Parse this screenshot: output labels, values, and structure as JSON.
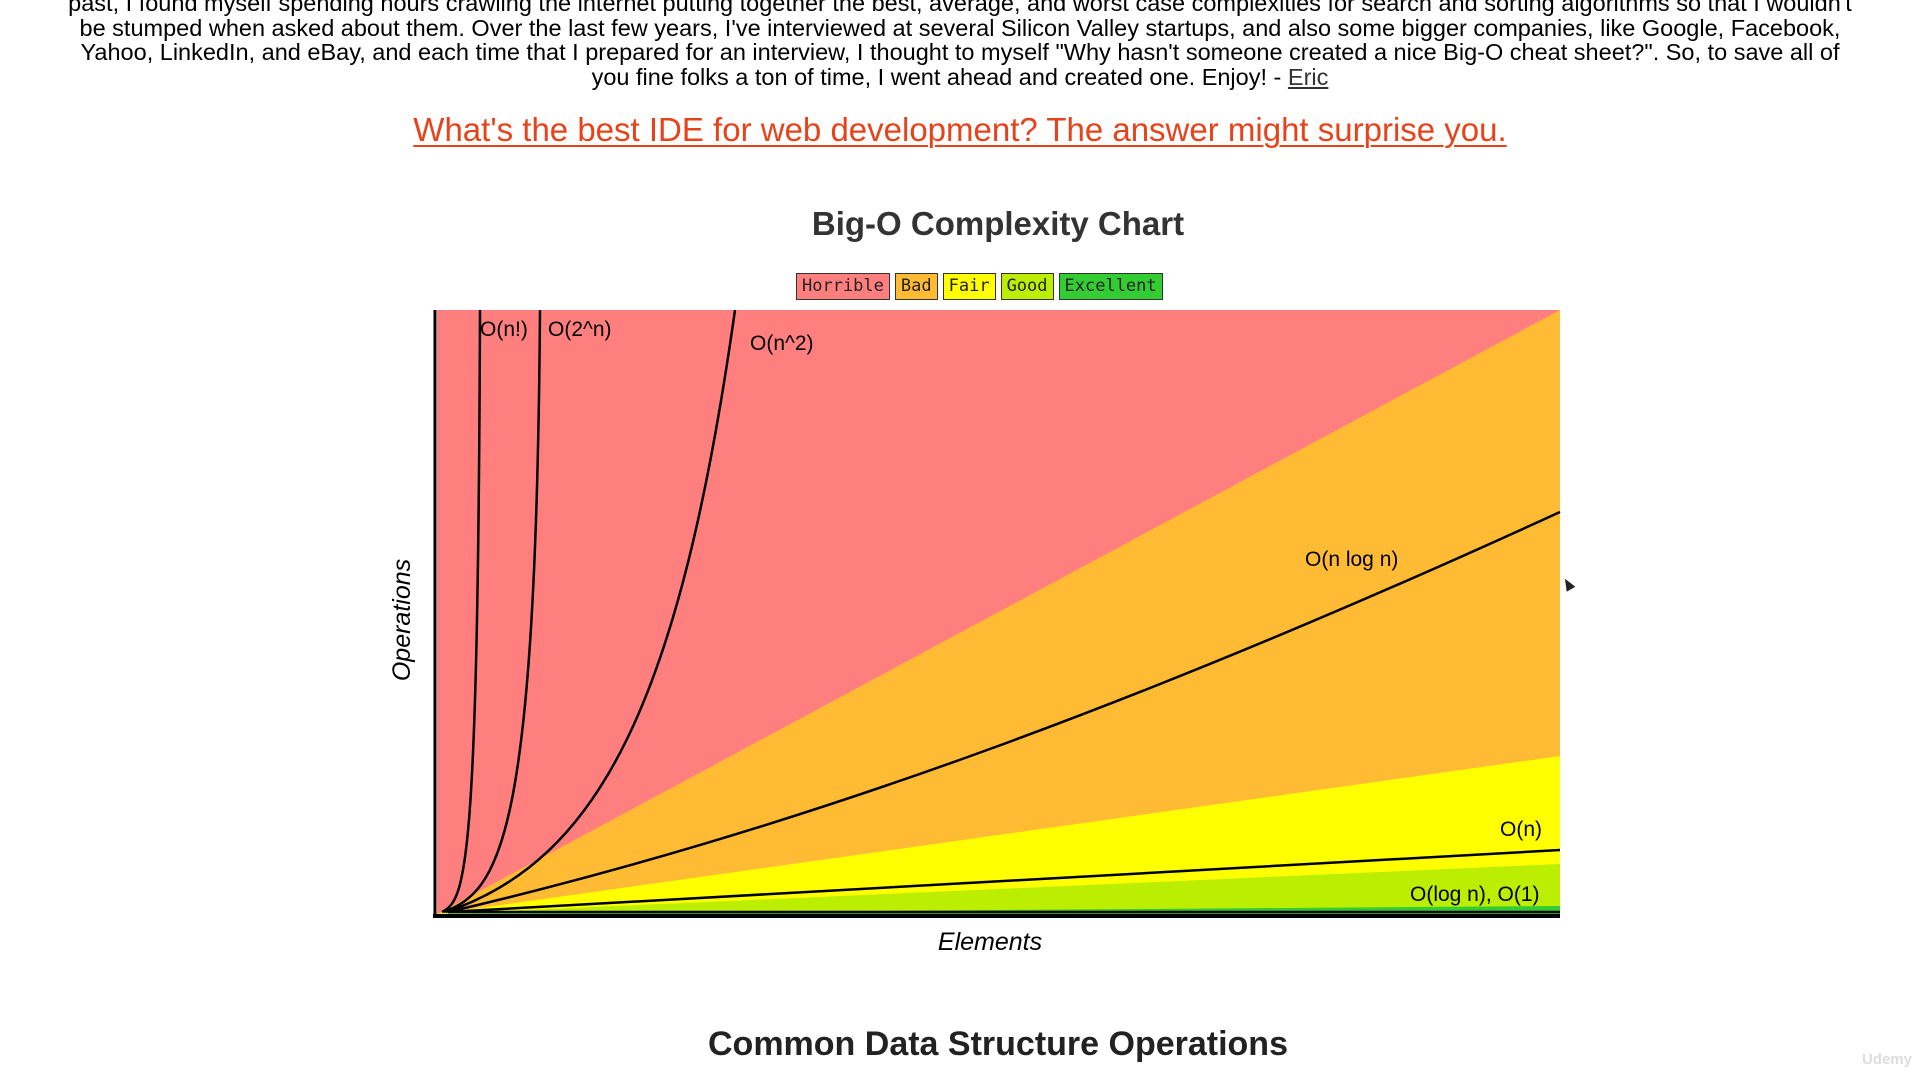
{
  "intro": {
    "line1": "past, I found myself spending hours crawling the internet putting together the best, average, and worst case complexities for search and sorting algorithms so that I wouldn't",
    "line2": "be stumped when asked about them.  Over the last few years, I've interviewed at several Silicon Valley startups, and also some bigger companies, like Google, Facebook,",
    "line3": "Yahoo, LinkedIn, and eBay, and each time that I prepared for an interview, I thought to myself \"Why hasn't someone created a nice Big-O cheat sheet?\".  So, to save all of",
    "line4": "you fine folks a ton of time, I went ahead and created one.  Enjoy! - ",
    "author_link": "Eric"
  },
  "promo_link": "What's the best IDE for web development? The answer might surprise you.",
  "chart_data": {
    "type": "area",
    "title": "Big-O Complexity Chart",
    "xlabel": "Elements",
    "ylabel": "Operations",
    "legend": [
      {
        "label": "Horrible",
        "color": "#ff7f7f"
      },
      {
        "label": "Bad",
        "color": "#ffbb33"
      },
      {
        "label": "Fair",
        "color": "#ffff00"
      },
      {
        "label": "Good",
        "color": "#bbee00"
      },
      {
        "label": "Excellent",
        "color": "#33cc33"
      }
    ],
    "legend_position": "top-center",
    "curves": [
      {
        "name": "O(n!)"
      },
      {
        "name": "O(2^n)"
      },
      {
        "name": "O(n^2)"
      },
      {
        "name": "O(n log n)"
      },
      {
        "name": "O(n)"
      },
      {
        "name": "O(log n), O(1)"
      }
    ],
    "grid": false
  },
  "section_heading": "Common Data Structure Operations",
  "watermark": "Udemy"
}
